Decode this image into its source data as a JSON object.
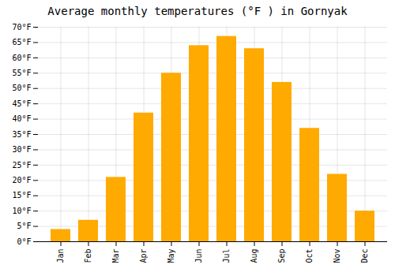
{
  "chart_data": {
    "type": "bar",
    "title": "Average monthly temperatures (°F ) in Gornyak",
    "categories": [
      "Jan",
      "Feb",
      "Mar",
      "Apr",
      "May",
      "Jun",
      "Jul",
      "Aug",
      "Sep",
      "Oct",
      "Nov",
      "Dec"
    ],
    "values": [
      4,
      7,
      21,
      42,
      55,
      64,
      67,
      63,
      52,
      37,
      22,
      10
    ],
    "color": "#FFAA00",
    "ylim": [
      0,
      70
    ],
    "yticks": [
      {
        "value": 0,
        "label": "0°F"
      },
      {
        "value": 5,
        "label": "5°F"
      },
      {
        "value": 10,
        "label": "10°F"
      },
      {
        "value": 15,
        "label": "15°F"
      },
      {
        "value": 20,
        "label": "20°F"
      },
      {
        "value": 25,
        "label": "25°F"
      },
      {
        "value": 30,
        "label": "30°F"
      },
      {
        "value": 35,
        "label": "35°F"
      },
      {
        "value": 40,
        "label": "40°F"
      },
      {
        "value": 45,
        "label": "45°F"
      },
      {
        "value": 50,
        "label": "50°F"
      },
      {
        "value": 55,
        "label": "55°F"
      },
      {
        "value": 60,
        "label": "60°F"
      },
      {
        "value": 65,
        "label": "65°F"
      },
      {
        "value": 70,
        "label": "70°F"
      }
    ],
    "grid": true
  }
}
